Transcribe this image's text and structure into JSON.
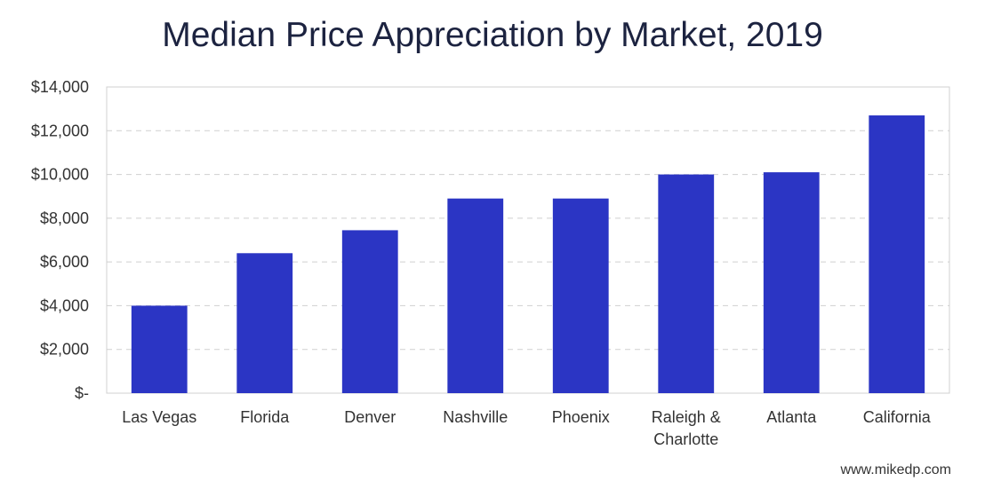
{
  "footer": {
    "watermark": "www.mikedp.com"
  },
  "chart_data": {
    "type": "bar",
    "title": "Median Price Appreciation by Market, 2019",
    "xlabel": "",
    "ylabel": "",
    "categories": [
      [
        "Las Vegas"
      ],
      [
        "Florida"
      ],
      [
        "Denver"
      ],
      [
        "Nashville"
      ],
      [
        "Phoenix"
      ],
      [
        "Raleigh &",
        "Charlotte"
      ],
      [
        "Atlanta"
      ],
      [
        "California"
      ]
    ],
    "values": [
      4000,
      6400,
      7450,
      8900,
      8900,
      10000,
      10100,
      12700
    ],
    "ylim": [
      0,
      14000
    ],
    "yticks": [
      0,
      2000,
      4000,
      6000,
      8000,
      10000,
      12000,
      14000
    ],
    "ytick_labels": [
      "$-",
      "$2,000",
      "$4,000",
      "$6,000",
      "$8,000",
      "$10,000",
      "$12,000",
      "$14,000"
    ],
    "grid": true,
    "legend": "none",
    "bar_color": "#2b35c4",
    "grid_color": "#cfcfcf"
  }
}
